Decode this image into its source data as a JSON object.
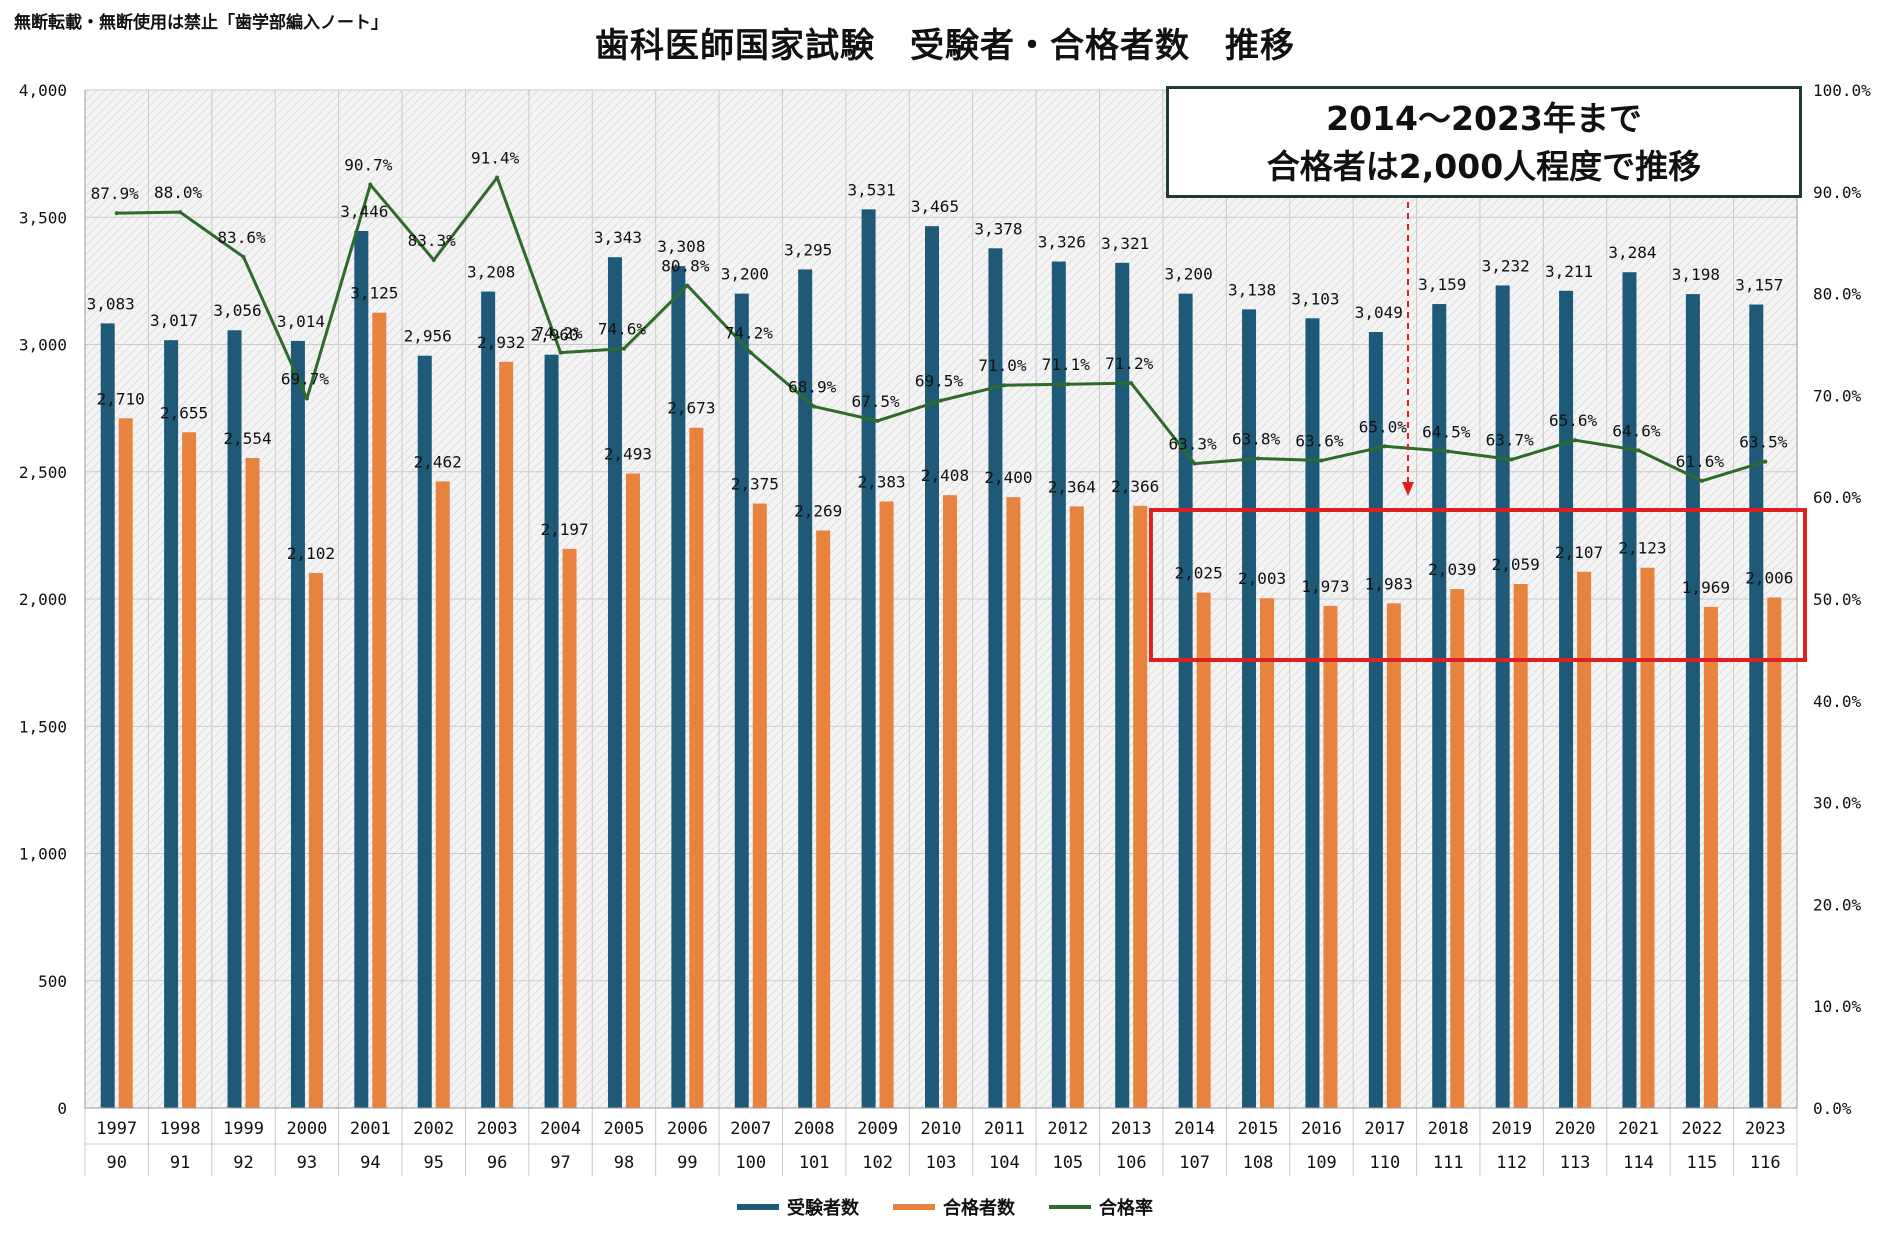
{
  "notice": "無断転載・無断使用は禁止「歯学部編入ノート」",
  "colors": {
    "examinees": "#1e5a78",
    "passers": "#e8823f",
    "rate": "#2e6b2b",
    "highlight": "#e02020",
    "grid": "#c9c9c9"
  },
  "callout": {
    "line1": "2014〜2023年まで",
    "line2": "合格者は2,000人程度で推移"
  },
  "chart_data": {
    "type": "bar",
    "title": "歯科医師国家試験　受験者・合格者数　推移",
    "categories": [
      "1997",
      "1998",
      "1999",
      "2000",
      "2001",
      "2002",
      "2003",
      "2004",
      "2005",
      "2006",
      "2007",
      "2008",
      "2009",
      "2010",
      "2011",
      "2012",
      "2013",
      "2014",
      "2015",
      "2016",
      "2017",
      "2018",
      "2019",
      "2020",
      "2021",
      "2022",
      "2023"
    ],
    "exam_numbers": [
      "90",
      "91",
      "92",
      "93",
      "94",
      "95",
      "96",
      "97",
      "98",
      "99",
      "100",
      "101",
      "102",
      "103",
      "104",
      "105",
      "106",
      "107",
      "108",
      "109",
      "110",
      "111",
      "112",
      "113",
      "114",
      "115",
      "116"
    ],
    "series": [
      {
        "name": "受験者数",
        "type": "bar",
        "axis": "left",
        "values": [
          3083,
          3017,
          3056,
          3014,
          3446,
          2956,
          3208,
          2960,
          3343,
          3308,
          3200,
          3295,
          3531,
          3465,
          3378,
          3326,
          3321,
          3200,
          3138,
          3103,
          3049,
          3159,
          3232,
          3211,
          3284,
          3198,
          3157
        ],
        "labels": [
          "3,083",
          "3,017",
          "3,056",
          "3,014",
          "3,446",
          "2,956",
          "3,208",
          "2,960",
          "3,343",
          "3,308",
          "3,200",
          "3,295",
          "3,531",
          "3,465",
          "3,378",
          "3,326",
          "3,321",
          "3,200",
          "3,138",
          "3,103",
          "3,049",
          "3,159",
          "3,232",
          "3,211",
          "3,284",
          "3,198",
          "3,157"
        ]
      },
      {
        "name": "合格者数",
        "type": "bar",
        "axis": "left",
        "values": [
          2710,
          2655,
          2554,
          2102,
          3125,
          2462,
          2932,
          2197,
          2493,
          2673,
          2375,
          2269,
          2383,
          2408,
          2400,
          2364,
          2366,
          2025,
          2003,
          1973,
          1983,
          2039,
          2059,
          2107,
          2123,
          1969,
          2006
        ],
        "labels": [
          "2,710",
          "2,655",
          "2,554",
          "2,102",
          "3,125",
          "2,462",
          "2,932",
          "2,197",
          "2,493",
          "2,673",
          "2,375",
          "2,269",
          "2,383",
          "2,408",
          "2,400",
          "2,364",
          "2,366",
          "2,025",
          "2,003",
          "1,973",
          "1,983",
          "2,039",
          "2,059",
          "2,107",
          "2,123",
          "1,969",
          "2,006"
        ]
      },
      {
        "name": "合格率",
        "type": "line",
        "axis": "right",
        "values": [
          87.9,
          88.0,
          83.6,
          69.7,
          90.7,
          83.3,
          91.4,
          74.2,
          74.6,
          80.8,
          74.2,
          68.9,
          67.5,
          69.5,
          71.0,
          71.1,
          71.2,
          63.3,
          63.8,
          63.6,
          65.0,
          64.5,
          63.7,
          65.6,
          64.6,
          61.6,
          63.5
        ],
        "labels": [
          "87.9%",
          "88.0%",
          "83.6%",
          "69.7%",
          "90.7%",
          "83.3%",
          "91.4%",
          "74.2%",
          "74.6%",
          "80.8%",
          "74.2%",
          "68.9%",
          "67.5%",
          "69.5%",
          "71.0%",
          "71.1%",
          "71.2%",
          "63.3%",
          "63.8%",
          "63.6%",
          "65.0%",
          "64.5%",
          "63.7%",
          "65.6%",
          "64.6%",
          "61.6%",
          "63.5%"
        ]
      }
    ],
    "left_axis": {
      "ylim": [
        0,
        4000
      ],
      "ticks": [
        "0",
        "500",
        "1,000",
        "1,500",
        "2,000",
        "2,500",
        "3,000",
        "3,500",
        "4,000"
      ]
    },
    "right_axis": {
      "ylim": [
        0,
        100
      ],
      "ticks": [
        "0.0%",
        "10.0%",
        "20.0%",
        "30.0%",
        "40.0%",
        "50.0%",
        "60.0%",
        "70.0%",
        "80.0%",
        "90.0%",
        "100.0%"
      ]
    },
    "grid": true,
    "legend": "bottom",
    "highlight_range": [
      "2014",
      "2023"
    ]
  }
}
